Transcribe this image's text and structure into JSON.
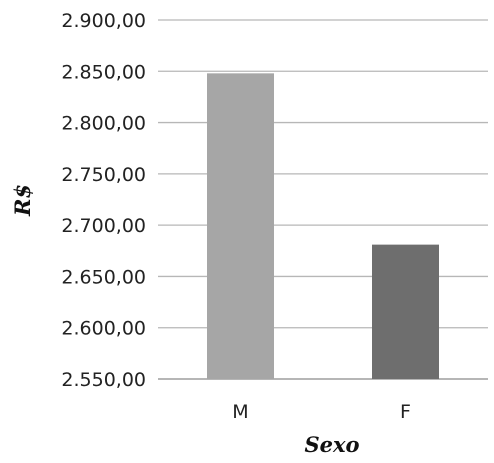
{
  "chart_data": {
    "type": "bar",
    "categories": [
      "M",
      "F"
    ],
    "values": [
      2848,
      2681
    ],
    "title": "",
    "xlabel": "Sexo",
    "ylabel": "R$",
    "ylim": [
      2550,
      2900
    ],
    "yticks": [
      "2.550,00",
      "2.600,00",
      "2.650,00",
      "2.700,00",
      "2.750,00",
      "2.800,00",
      "2.850,00",
      "2.900,00"
    ],
    "ytick_values": [
      2550,
      2600,
      2650,
      2700,
      2750,
      2800,
      2850,
      2900
    ],
    "bar_colors": [
      "#a6a6a6",
      "#6e6e6e"
    ],
    "grid": true,
    "legend": "none"
  }
}
